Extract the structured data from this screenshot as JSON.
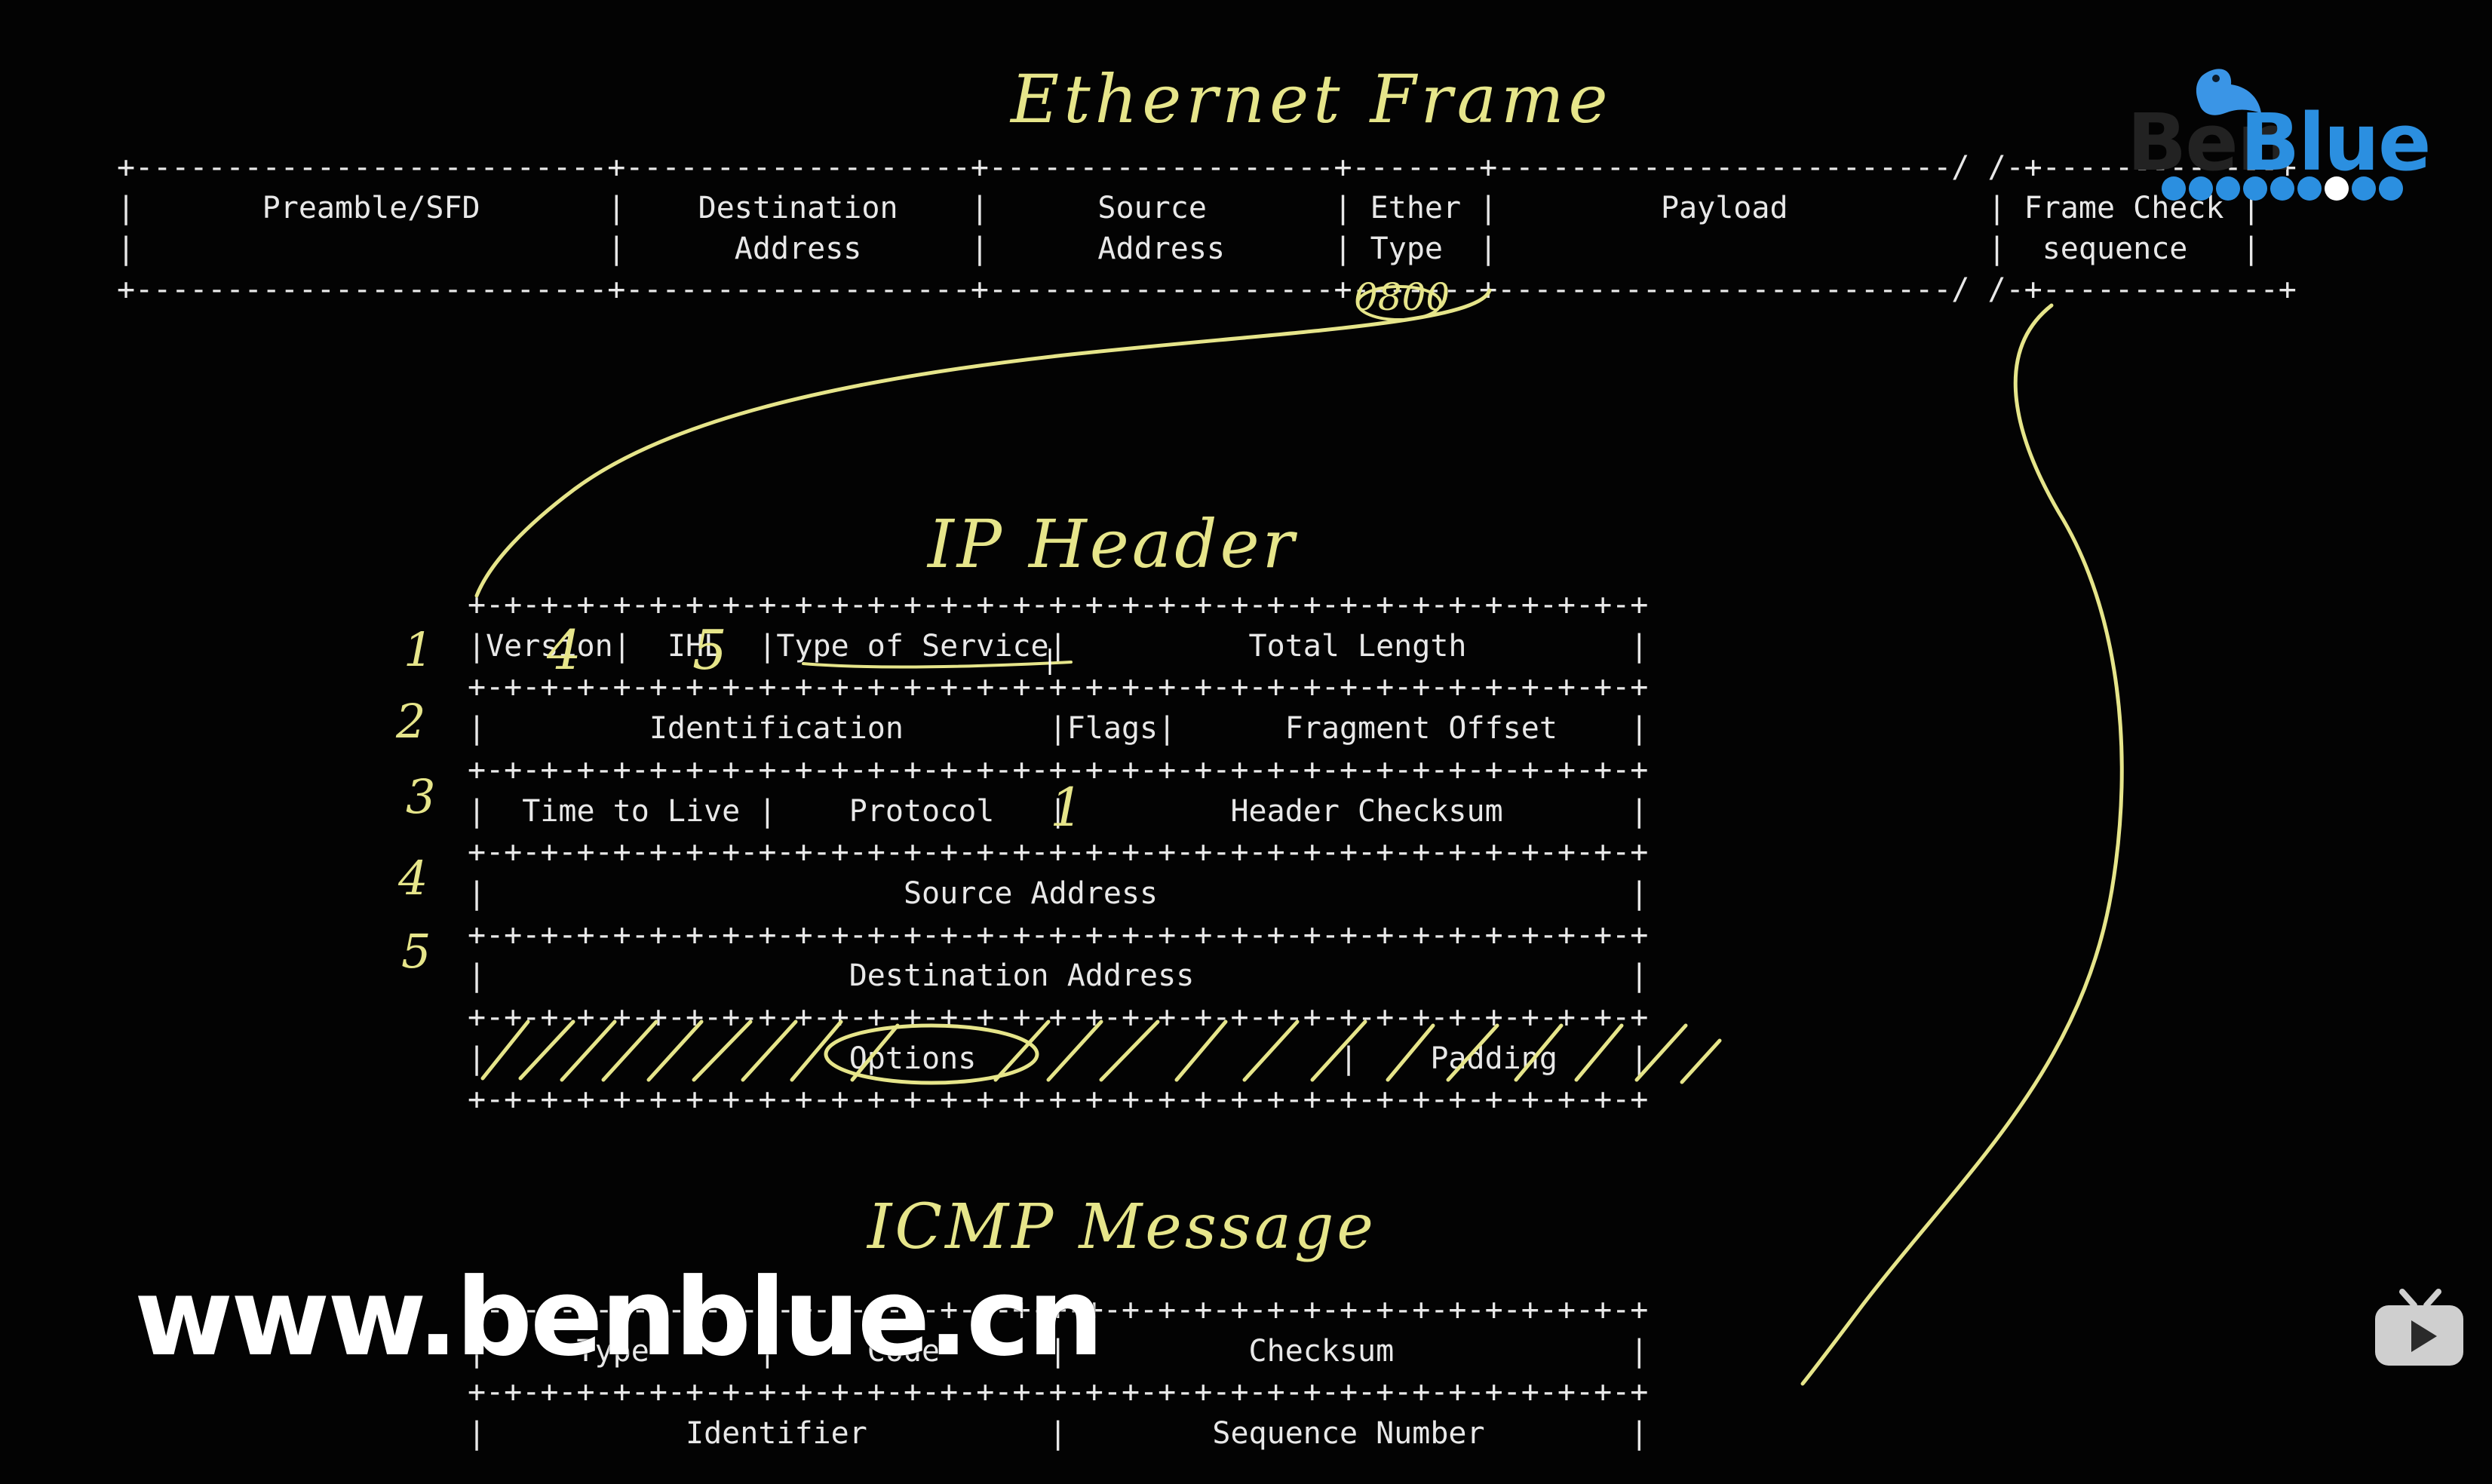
{
  "titles": {
    "ethernet": "Ethernet Frame",
    "ip": "IP Header",
    "icmp": "ICMP Message"
  },
  "ethernet_frame": {
    "ascii": "+--------------------------+-------------------+-------------------+-------+-------------------------/ /-+-------------+\n|       Preamble/SFD       |    Destination    |      Source       | Ether |         Payload           | Frame Check |\n|                          |      Address      |      Address      | Type  |                           |  sequence   |\n+--------------------------+-------------------+-------------------+-------+-------------------------/ /-+-------------+",
    "ethertype_annotation": "0800"
  },
  "ip_header": {
    "ascii": "+-+-+-+-+-+-+-+-+-+-+-+-+-+-+-+-+-+-+-+-+-+-+-+-+-+-+-+-+-+-+-+-+\n|Version|  IHL  |Type of Service|          Total Length         |\n+-+-+-+-+-+-+-+-+-+-+-+-+-+-+-+-+-+-+-+-+-+-+-+-+-+-+-+-+-+-+-+-+\n|         Identification        |Flags|      Fragment Offset    |\n+-+-+-+-+-+-+-+-+-+-+-+-+-+-+-+-+-+-+-+-+-+-+-+-+-+-+-+-+-+-+-+-+\n|  Time to Live |    Protocol   |         Header Checksum       |\n+-+-+-+-+-+-+-+-+-+-+-+-+-+-+-+-+-+-+-+-+-+-+-+-+-+-+-+-+-+-+-+-+\n|                       Source Address                          |\n+-+-+-+-+-+-+-+-+-+-+-+-+-+-+-+-+-+-+-+-+-+-+-+-+-+-+-+-+-+-+-+-+\n|                    Destination Address                        |\n+-+-+-+-+-+-+-+-+-+-+-+-+-+-+-+-+-+-+-+-+-+-+-+-+-+-+-+-+-+-+-+-+\n|                    Options                    |    Padding    |\n+-+-+-+-+-+-+-+-+-+-+-+-+-+-+-+-+-+-+-+-+-+-+-+-+-+-+-+-+-+-+-+-+",
    "annotations": {
      "version": "4",
      "ihl": "5",
      "protocol": "1"
    },
    "row_numbers": [
      "1",
      "2",
      "3",
      "4",
      "5"
    ]
  },
  "icmp_message": {
    "ascii": "+-+-+-+-+-+-+-+-+-+-+-+-+-+-+-+-+-+-+-+-+-+-+-+-+-+-+-+-+-+-+-+-+\n|     Type      |     Code      |          Checksum             |\n+-+-+-+-+-+-+-+-+-+-+-+-+-+-+-+-+-+-+-+-+-+-+-+-+-+-+-+-+-+-+-+-+\n|           Identifier          |        Sequence Number        |"
  },
  "branding": {
    "logo_text": "Blue",
    "logo_ghost_text": "Ben",
    "watermark": "www.benblue.cn"
  },
  "colors": {
    "background": "#030303",
    "text": "#e8e8e8",
    "handwriting": "#e6e58a",
    "logo_blue": "#2b8fe0"
  },
  "icons": {
    "logo": "benblue-bird-logo",
    "player": "tv-play-icon"
  }
}
